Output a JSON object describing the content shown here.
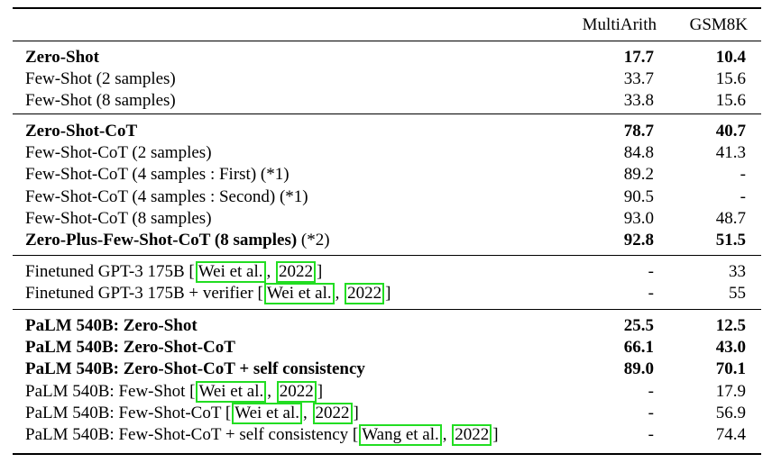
{
  "header": {
    "col1": "MultiArith",
    "col2": "GSM8K"
  },
  "groups": [
    {
      "rows": [
        {
          "label": "Zero-Shot",
          "suffix": "",
          "multiarith": "17.7",
          "gsm8k": "10.4",
          "bold": true,
          "cite": null
        },
        {
          "label": "Few-Shot (2 samples)",
          "suffix": "",
          "multiarith": "33.7",
          "gsm8k": "15.6",
          "bold": false,
          "cite": null
        },
        {
          "label": "Few-Shot (8 samples)",
          "suffix": "",
          "multiarith": "33.8",
          "gsm8k": "15.6",
          "bold": false,
          "cite": null
        }
      ]
    },
    {
      "rows": [
        {
          "label": "Zero-Shot-CoT",
          "suffix": "",
          "multiarith": "78.7",
          "gsm8k": "40.7",
          "bold": true,
          "cite": null
        },
        {
          "label": "Few-Shot-CoT (2 samples)",
          "suffix": "",
          "multiarith": "84.8",
          "gsm8k": "41.3",
          "bold": false,
          "cite": null
        },
        {
          "label": "Few-Shot-CoT (4 samples : First) (*1)",
          "suffix": "",
          "multiarith": "89.2",
          "gsm8k": "-",
          "bold": false,
          "cite": null
        },
        {
          "label": "Few-Shot-CoT (4 samples : Second) (*1)",
          "suffix": "",
          "multiarith": "90.5",
          "gsm8k": "-",
          "bold": false,
          "cite": null
        },
        {
          "label": "Few-Shot-CoT (8 samples)",
          "suffix": "",
          "multiarith": "93.0",
          "gsm8k": "48.7",
          "bold": false,
          "cite": null
        },
        {
          "label": "Zero-Plus-Few-Shot-CoT (8 samples)",
          "suffix": " (*2)",
          "multiarith": "92.8",
          "gsm8k": "51.5",
          "bold": true,
          "cite": null
        }
      ]
    },
    {
      "rows": [
        {
          "label": "Finetuned GPT-3 175B",
          "suffix": "",
          "multiarith": "-",
          "gsm8k": "33",
          "bold": false,
          "cite": {
            "author": "Wei et al.",
            "year": "2022"
          }
        },
        {
          "label": "Finetuned GPT-3 175B + verifier",
          "suffix": "",
          "multiarith": "-",
          "gsm8k": "55",
          "bold": false,
          "cite": {
            "author": "Wei et al.",
            "year": "2022"
          }
        }
      ]
    },
    {
      "rows": [
        {
          "label": "PaLM 540B: Zero-Shot",
          "suffix": "",
          "multiarith": "25.5",
          "gsm8k": "12.5",
          "bold": true,
          "cite": null
        },
        {
          "label": "PaLM 540B: Zero-Shot-CoT",
          "suffix": "",
          "multiarith": "66.1",
          "gsm8k": "43.0",
          "bold": true,
          "cite": null
        },
        {
          "label": "PaLM 540B: Zero-Shot-CoT + self consistency",
          "suffix": "",
          "multiarith": "89.0",
          "gsm8k": "70.1",
          "bold": true,
          "cite": null
        },
        {
          "label": "PaLM 540B: Few-Shot",
          "suffix": "",
          "multiarith": "-",
          "gsm8k": "17.9",
          "bold": false,
          "cite": {
            "author": "Wei et al.",
            "year": "2022"
          }
        },
        {
          "label": "PaLM 540B: Few-Shot-CoT",
          "suffix": "",
          "multiarith": "-",
          "gsm8k": "56.9",
          "bold": false,
          "cite": {
            "author": "Wei et al.",
            "year": "2022"
          }
        },
        {
          "label": "PaLM 540B: Few-Shot-CoT + self consistency",
          "suffix": "",
          "multiarith": "-",
          "gsm8k": "74.4",
          "bold": false,
          "cite": {
            "author": "Wang et al.",
            "year": "2022"
          }
        }
      ]
    }
  ]
}
